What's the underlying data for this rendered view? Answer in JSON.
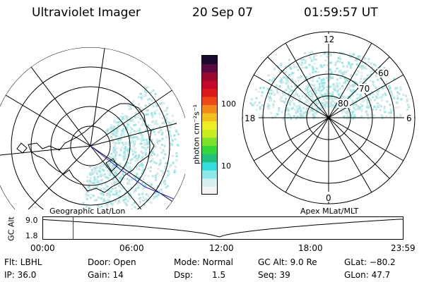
{
  "header": {
    "instrument": "Ultraviolet Imager",
    "date": "20 Sep 07",
    "time": "01:59:57 UT"
  },
  "colorbar": {
    "unit_label": "photon cm⁻²s⁻¹",
    "ticks": [
      {
        "value": 100,
        "label": "100"
      },
      {
        "value": 10,
        "label": "10"
      }
    ],
    "colors": [
      "#f4f4f4",
      "#d6f0f0",
      "#8ee8e8",
      "#33dddd",
      "#22c07a",
      "#35d83a",
      "#7fe22a",
      "#c8ee22",
      "#eeee22",
      "#f0c020",
      "#f28a1c",
      "#ee4a18",
      "#dd1818",
      "#c40a2a",
      "#9a0a30",
      "#5a0a40",
      "#1a0a30"
    ]
  },
  "geo_plot": {
    "label": "Geographic Lat/Lon",
    "hemisphere": "south",
    "circle_count": 6
  },
  "mag_plot": {
    "label": "Apex MLat/MLT",
    "mlt_labels": {
      "top": "12",
      "left": "18",
      "right": "6",
      "bottom": "0"
    },
    "lat_labels": [
      "80",
      "70",
      "60"
    ]
  },
  "timeline": {
    "axis_label": "GC Alt",
    "y_labels": [
      "9.0",
      "1.8"
    ],
    "x_labels": [
      "00:00",
      "06:00",
      "12:00",
      "18:00",
      "23:59"
    ],
    "marker_hour": 2.0,
    "marker_color": "#dd0000",
    "min_alt_hour": 11.7
  },
  "info_row1": {
    "flt": "Flt: LBHL",
    "door": "Door: Open",
    "mode": "Mode: Normal",
    "gcalt": "GC Alt: 9.0 Re",
    "glat": "GLat: −80.2"
  },
  "info_row2": {
    "ip": "IP: 36.0",
    "gain": "Gain: 14",
    "dsp_label": "Dsp:",
    "dsp_value": "1.5",
    "seq": "Seq: 39",
    "glon": "GLon:  47.7"
  }
}
